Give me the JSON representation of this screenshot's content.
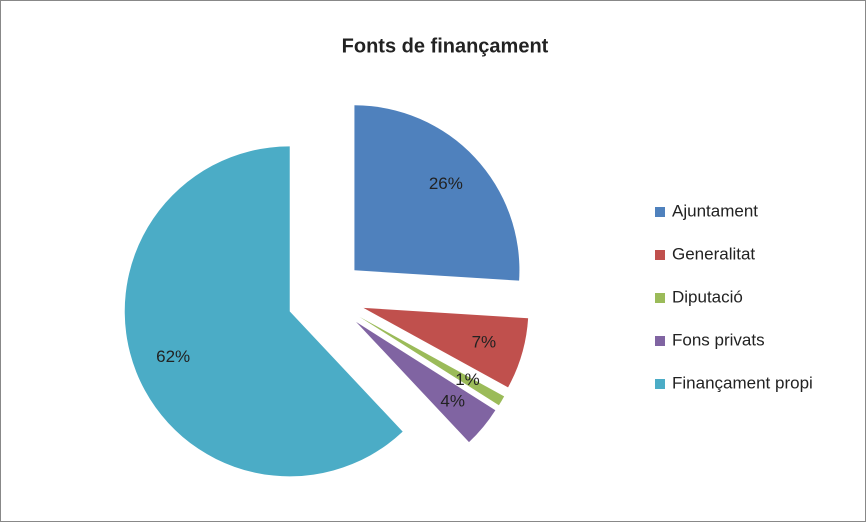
{
  "chart_data": {
    "type": "pie",
    "title": "Fonts de finançament",
    "categories": [
      "Ajuntament",
      "Generalitat",
      "Diputació",
      "Fons privats",
      "Finançament propi"
    ],
    "values": [
      26,
      7,
      1,
      4,
      62
    ],
    "value_labels": [
      "26%",
      "7%",
      "1%",
      "4%",
      "62%"
    ],
    "colors": [
      "#4f81bd",
      "#c0504d",
      "#9bbb59",
      "#8064a2",
      "#4bacc6"
    ],
    "exploded": true,
    "legend": "right"
  }
}
